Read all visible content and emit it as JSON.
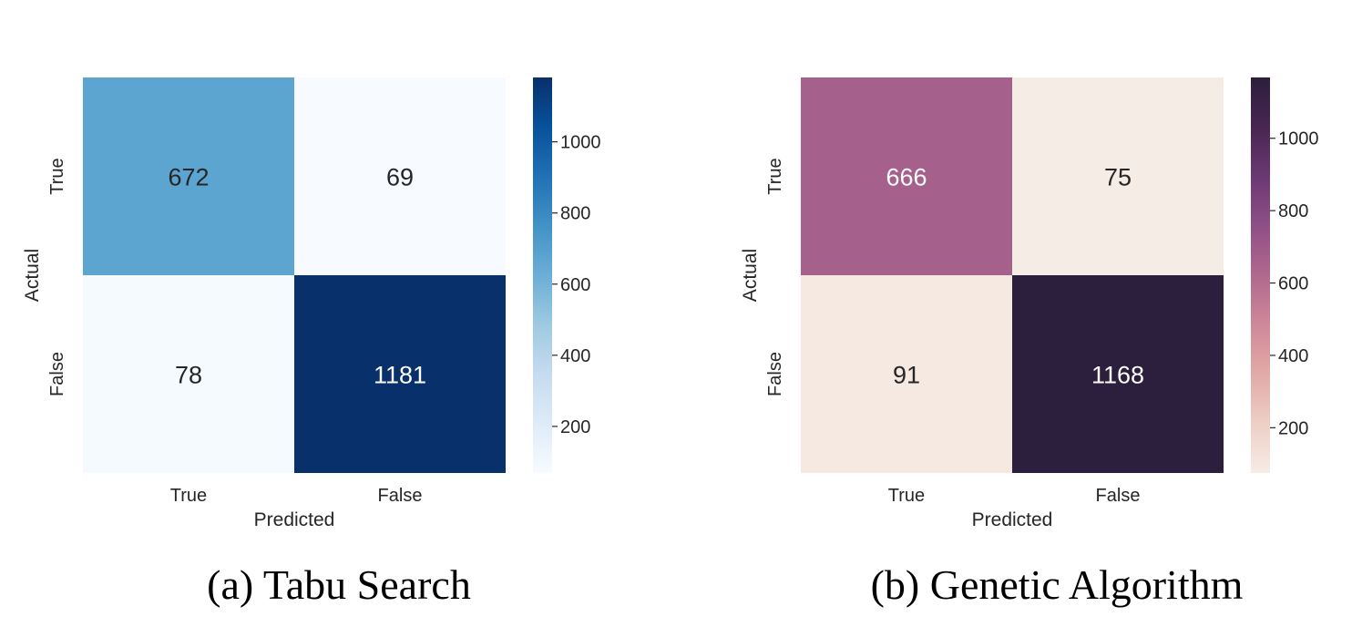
{
  "chart_data": [
    {
      "type": "heatmap",
      "caption": "(a) Tabu Search",
      "xlabel": "Predicted",
      "ylabel": "Actual",
      "x_categories": [
        "True",
        "False"
      ],
      "y_categories": [
        "True",
        "False"
      ],
      "values": [
        [
          672,
          69
        ],
        [
          78,
          1181
        ]
      ],
      "colormap": "Blues",
      "colorbar": {
        "range": [
          69,
          1181
        ],
        "ticks": [
          200,
          400,
          600,
          800,
          1000
        ],
        "tick_labels": [
          "200",
          "400",
          "600",
          "800",
          "1000"
        ],
        "colors": [
          "#f7fbff",
          "#deebf7",
          "#c6dbef",
          "#9ecae1",
          "#6baed6",
          "#4292c6",
          "#2171b5",
          "#08519c",
          "#08306b"
        ]
      }
    },
    {
      "type": "heatmap",
      "caption": "(b) Genetic Algorithm",
      "xlabel": "Predicted",
      "ylabel": "Actual",
      "x_categories": [
        "True",
        "False"
      ],
      "y_categories": [
        "True",
        "False"
      ],
      "values": [
        [
          666,
          75
        ],
        [
          91,
          1168
        ]
      ],
      "colormap": "rocket_r",
      "colorbar": {
        "range": [
          75,
          1168
        ],
        "ticks": [
          200,
          400,
          600,
          800,
          1000
        ],
        "tick_labels": [
          "200",
          "400",
          "600",
          "800",
          "1000"
        ],
        "colors": [
          "#f6ece6",
          "#edcfc6",
          "#e2aaa6",
          "#cf889a",
          "#b0688d",
          "#8f4f86",
          "#6b3874",
          "#472650",
          "#2c1e3d"
        ]
      }
    }
  ]
}
